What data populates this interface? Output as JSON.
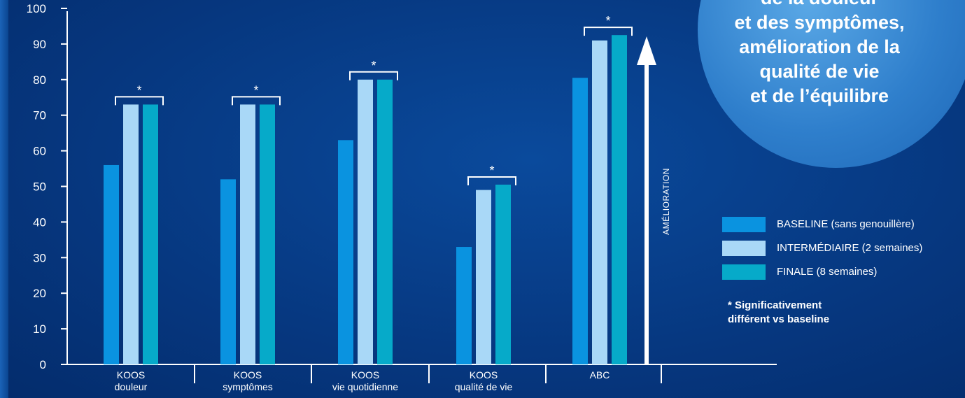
{
  "chart_data": {
    "type": "bar",
    "ylim": [
      0,
      100
    ],
    "yticks": [
      0,
      10,
      20,
      30,
      40,
      50,
      60,
      70,
      80,
      90,
      100
    ],
    "categories": [
      [
        "KOOS",
        "douleur"
      ],
      [
        "KOOS",
        "symptômes"
      ],
      [
        "KOOS",
        "vie quotidienne"
      ],
      [
        "KOOS",
        "qualité de vie"
      ],
      [
        "ABC"
      ]
    ],
    "series": [
      {
        "name": "BASELINE (sans genouillère)",
        "color": "#0a93e0",
        "values": [
          56,
          52,
          63,
          33,
          80.5
        ]
      },
      {
        "name": "INTERMÉDIAIRE (2 semaines)",
        "color": "#a9d8f7",
        "values": [
          73,
          73,
          80,
          49,
          91
        ]
      },
      {
        "name": "FINALE (8 semaines)",
        "color": "#06aac9",
        "values": [
          73,
          73,
          80,
          50.5,
          92.5
        ]
      }
    ],
    "significance_marker": "*",
    "legend_position": "right",
    "grid": false
  },
  "arrow_label": "AMÉLIORATION",
  "footnote": {
    "line1": "* Significativement",
    "line2": "différent vs baseline"
  },
  "bubble": {
    "lines": [
      "de la douleur",
      "et des symptômes,",
      "amélioration de la",
      "qualité de vie",
      "et de l’équilibre"
    ]
  },
  "colors": {
    "background": "#06377f",
    "bubble": "#2f7fcc",
    "axis": "#ffffff"
  }
}
